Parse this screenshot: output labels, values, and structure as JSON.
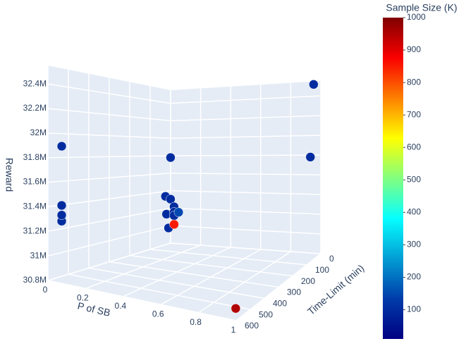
{
  "chart_data": {
    "type": "scatter3d",
    "xlabel": "P of SB",
    "ylabel": "Time-Limit (min)",
    "zlabel": "Reward",
    "colorbar_title": "Sample Size (K)",
    "colorscale": "Jet",
    "x": [
      0.03,
      0.03,
      0.03,
      0.03,
      0.02,
      0.02,
      0.02,
      0.03,
      0.02,
      0.03,
      0.03,
      0.02,
      0.03,
      0.06,
      0.96,
      0.95,
      0.99
    ],
    "y": [
      560,
      560,
      560,
      560,
      15,
      40,
      15,
      5,
      35,
      5,
      5,
      25,
      5,
      5,
      8,
      20,
      590
    ],
    "z": [
      31900000,
      31280000,
      31330000,
      31410000,
      31780000,
      31350000,
      31310000,
      31220000,
      31150000,
      31160000,
      31120000,
      30990000,
      31020000,
      31160000,
      32520000,
      31790000,
      30880000
    ],
    "color": [
      100,
      100,
      100,
      100,
      100,
      100,
      100,
      100,
      100,
      100,
      100,
      100,
      850,
      150,
      100,
      100,
      950
    ],
    "xlim": [
      0,
      1
    ],
    "ylim": [
      0,
      600
    ],
    "zlim": [
      30800000,
      32550000
    ],
    "clim": [
      10,
      1000
    ],
    "xticks": [
      0,
      0.2,
      0.4,
      0.6,
      0.8,
      1
    ],
    "yticks": [
      0,
      100,
      200,
      300,
      400,
      500,
      600
    ],
    "zticks": [
      {
        "value": 30800000,
        "label": "30.8M"
      },
      {
        "value": 31000000,
        "label": "31M"
      },
      {
        "value": 31200000,
        "label": "31.2M"
      },
      {
        "value": 31400000,
        "label": "31.4M"
      },
      {
        "value": 31600000,
        "label": "31.6M"
      },
      {
        "value": 31800000,
        "label": "31.8M"
      },
      {
        "value": 32000000,
        "label": "32M"
      },
      {
        "value": 32200000,
        "label": "32.2M"
      },
      {
        "value": 32400000,
        "label": "32.4M"
      }
    ],
    "cticks": [
      100,
      200,
      300,
      400,
      500,
      600,
      700,
      800,
      900,
      1000
    ],
    "grid": true
  }
}
